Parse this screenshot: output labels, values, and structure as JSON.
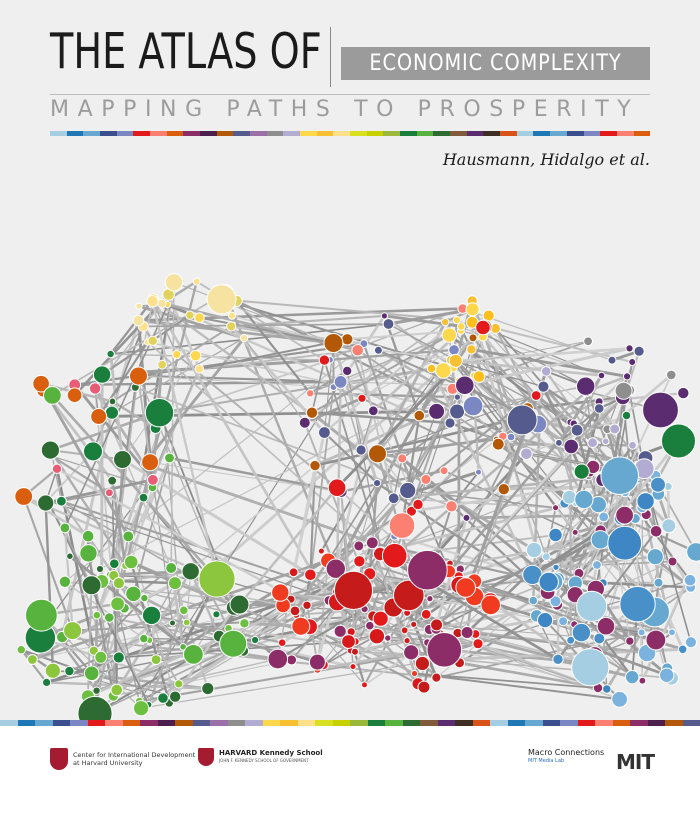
{
  "title": {
    "main": "THE ATLAS OF",
    "sub": "ECONOMIC COMPLEXITY",
    "tagline": "MAPPING PATHS TO PROSPERITY"
  },
  "authors": "Hausmann, Hidalgo et al.",
  "palette": [
    "#a6cee3",
    "#1f78b4",
    "#66a8d0",
    "#3b4f8f",
    "#7b87c2",
    "#e31a1c",
    "#fb8072",
    "#d95f0e",
    "#8c2d68",
    "#4d1f4f",
    "#b35806",
    "#555b8c",
    "#9b6fa8",
    "#8e8e8e",
    "#b2abd2",
    "#fdd84c",
    "#f7c033",
    "#fee08b",
    "#d9e021",
    "#c7d100",
    "#9bb83a",
    "#1a7f3c",
    "#57b33d",
    "#2e6b32",
    "#805a3b",
    "#5b2c6f",
    "#3e2f24",
    "#d95319"
  ],
  "footer": {
    "cid_line1": "Center for International Development",
    "cid_line2": "at Harvard University",
    "hks_line1": "HARVARD Kennedy School",
    "hks_line2": "JOHN F. KENNEDY SCHOOL OF GOVERNMENT",
    "mc_line1": "Macro Connections",
    "mc_line2": "MIT Media Lab",
    "mit": "MIT"
  }
}
